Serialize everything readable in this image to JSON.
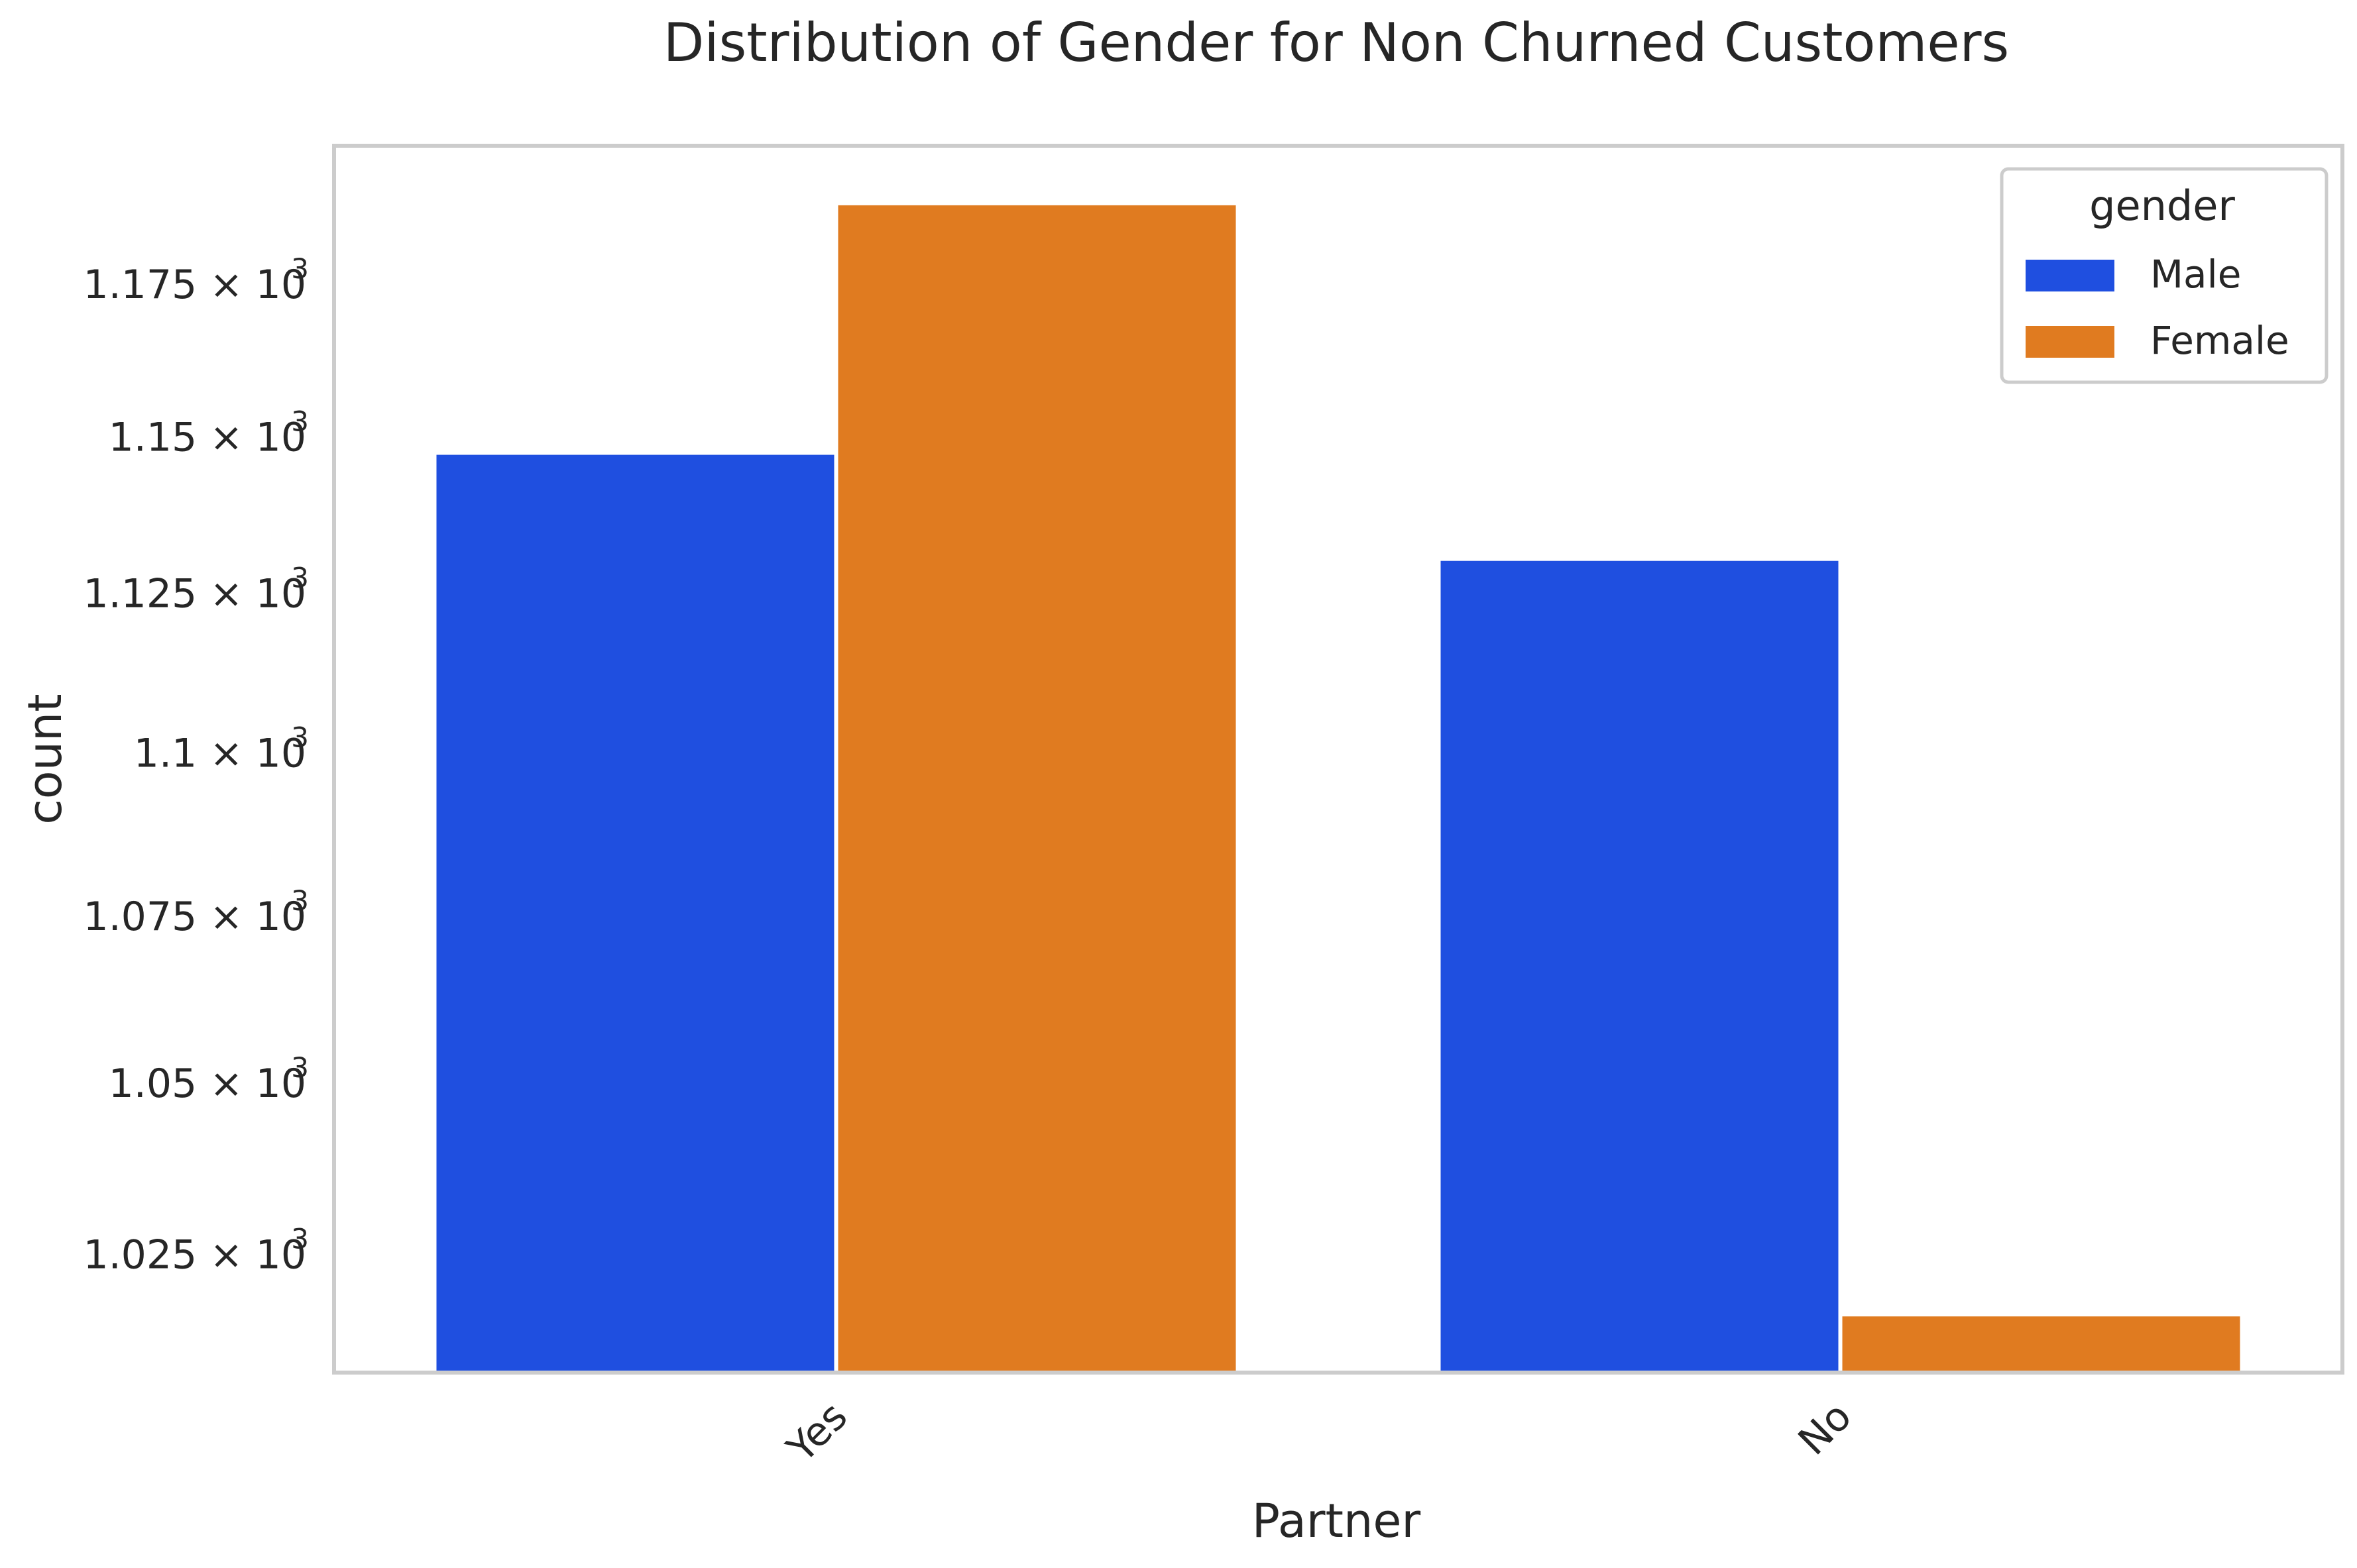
{
  "chart_data": {
    "type": "bar",
    "title": "Distribution of Gender for Non Churned Customers",
    "xlabel": "Partner",
    "ylabel": "count",
    "yscale": "log",
    "categories": [
      "Yes",
      "No"
    ],
    "series": [
      {
        "name": "Male",
        "values": [
          1147,
          1130
        ],
        "color": "#1f4fe0"
      },
      {
        "name": "Female",
        "values": [
          1188,
          1016
        ],
        "color": "#e07b20"
      }
    ],
    "ylim": [
      1008,
      1198
    ],
    "yticks": [
      {
        "value": 1025,
        "mantissa": "1.025",
        "base": "10",
        "exponent": "3"
      },
      {
        "value": 1050,
        "mantissa": "1.05",
        "base": "10",
        "exponent": "3"
      },
      {
        "value": 1075,
        "mantissa": "1.075",
        "base": "10",
        "exponent": "3"
      },
      {
        "value": 1100,
        "mantissa": "1.1",
        "base": "10",
        "exponent": "3"
      },
      {
        "value": 1125,
        "mantissa": "1.125",
        "base": "10",
        "exponent": "3"
      },
      {
        "value": 1150,
        "mantissa": "1.15",
        "base": "10",
        "exponent": "3"
      },
      {
        "value": 1175,
        "mantissa": "1.175",
        "base": "10",
        "exponent": "3"
      }
    ],
    "legend": {
      "title": "gender",
      "position": "top-right"
    },
    "grid": false
  }
}
